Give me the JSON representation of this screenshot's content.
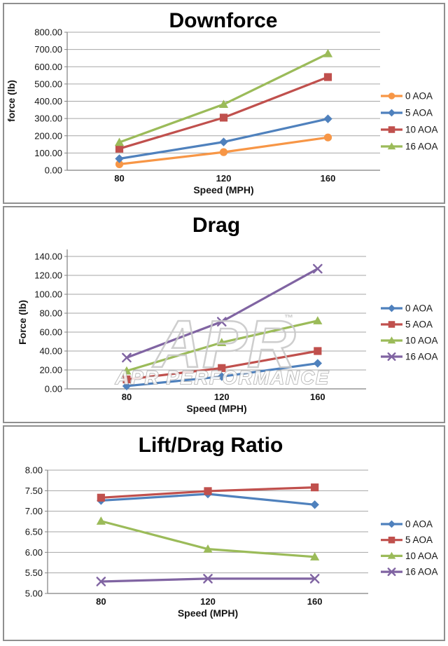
{
  "chart_data": [
    {
      "type": "line",
      "title": "Downforce",
      "xlabel": "Speed (MPH)",
      "ylabel": "force (lb)",
      "categories": [
        "80",
        "120",
        "160"
      ],
      "ylim": [
        0,
        800
      ],
      "ytick_step": 100,
      "ytick_decimals": 2,
      "grid": true,
      "legend_position": "right",
      "series": [
        {
          "name": "0 AOA",
          "color": "#F79646",
          "marker": "circle",
          "values": [
            35,
            105,
            190
          ]
        },
        {
          "name": "5 AOA",
          "color": "#4F81BD",
          "marker": "diamond",
          "values": [
            67,
            164,
            298
          ]
        },
        {
          "name": "10 AOA",
          "color": "#C0504D",
          "marker": "square",
          "values": [
            125,
            305,
            540
          ]
        },
        {
          "name": "16 AOA",
          "color": "#9BBB59",
          "marker": "triangle",
          "values": [
            162,
            382,
            676
          ]
        }
      ]
    },
    {
      "type": "line",
      "title": "Drag",
      "xlabel": "Speed (MPH)",
      "ylabel": "Force (lb)",
      "categories": [
        "80",
        "120",
        "160"
      ],
      "ylim": [
        0,
        140
      ],
      "ytick_step": 20,
      "ytick_decimals": 2,
      "grid": true,
      "legend_position": "right",
      "watermark": {
        "logo_text": "APR",
        "tm_text": "™",
        "text": "APR PERFORMANCE"
      },
      "series": [
        {
          "name": "0 AOA",
          "color": "#4F81BD",
          "marker": "diamond",
          "values": [
            3,
            13,
            27
          ]
        },
        {
          "name": "5 AOA",
          "color": "#C0504D",
          "marker": "square",
          "values": [
            10,
            22,
            40
          ]
        },
        {
          "name": "10 AOA",
          "color": "#9BBB59",
          "marker": "triangle",
          "values": [
            19,
            49,
            72
          ]
        },
        {
          "name": "16 AOA",
          "color": "#8064A2",
          "marker": "x",
          "values": [
            33,
            71,
            127
          ]
        }
      ]
    },
    {
      "type": "line",
      "title": "Lift/Drag Ratio",
      "xlabel": "Speed (MPH)",
      "ylabel": "",
      "categories": [
        "80",
        "120",
        "160"
      ],
      "ylim": [
        5,
        8
      ],
      "ytick_step": 0.5,
      "ytick_decimals": 2,
      "grid": true,
      "legend_position": "right",
      "series": [
        {
          "name": "0 AOA",
          "color": "#4F81BD",
          "marker": "diamond",
          "values": [
            7.26,
            7.42,
            7.16
          ]
        },
        {
          "name": "5 AOA",
          "color": "#C0504D",
          "marker": "square",
          "values": [
            7.33,
            7.49,
            7.58
          ]
        },
        {
          "name": "10 AOA",
          "color": "#9BBB59",
          "marker": "triangle",
          "values": [
            6.76,
            6.08,
            5.89
          ]
        },
        {
          "name": "16 AOA",
          "color": "#8064A2",
          "marker": "x",
          "values": [
            5.29,
            5.36,
            5.36
          ]
        }
      ]
    }
  ]
}
